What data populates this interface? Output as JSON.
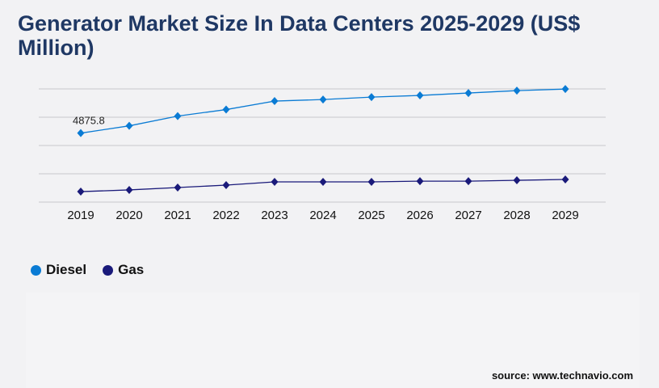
{
  "title": "Generator Market Size In Data Centers 2025-2029 (US$ Million)",
  "source": "source: www.technavio.com",
  "chart_data": {
    "type": "line",
    "title": "Generator Market Size In Data Centers 2025-2029 (US$ Million)",
    "x": [
      "2019",
      "2020",
      "2021",
      "2022",
      "2023",
      "2024",
      "2025",
      "2026",
      "2027",
      "2028",
      "2029"
    ],
    "ylim": [
      0,
      8000
    ],
    "grid": true,
    "legend": "bottom-left",
    "annotations": [
      {
        "series": "Diesel",
        "x": "2019",
        "label": "4875.8"
      }
    ],
    "series": [
      {
        "name": "Diesel",
        "color": "#0a7bd4",
        "values": [
          4875.8,
          5390,
          6080,
          6540,
          7140,
          7250,
          7420,
          7540,
          7710,
          7880,
          7990
        ]
      },
      {
        "name": "Gas",
        "color": "#1a1a7a",
        "values": [
          740,
          860,
          1030,
          1200,
          1430,
          1430,
          1430,
          1480,
          1480,
          1540,
          1600
        ]
      }
    ]
  }
}
